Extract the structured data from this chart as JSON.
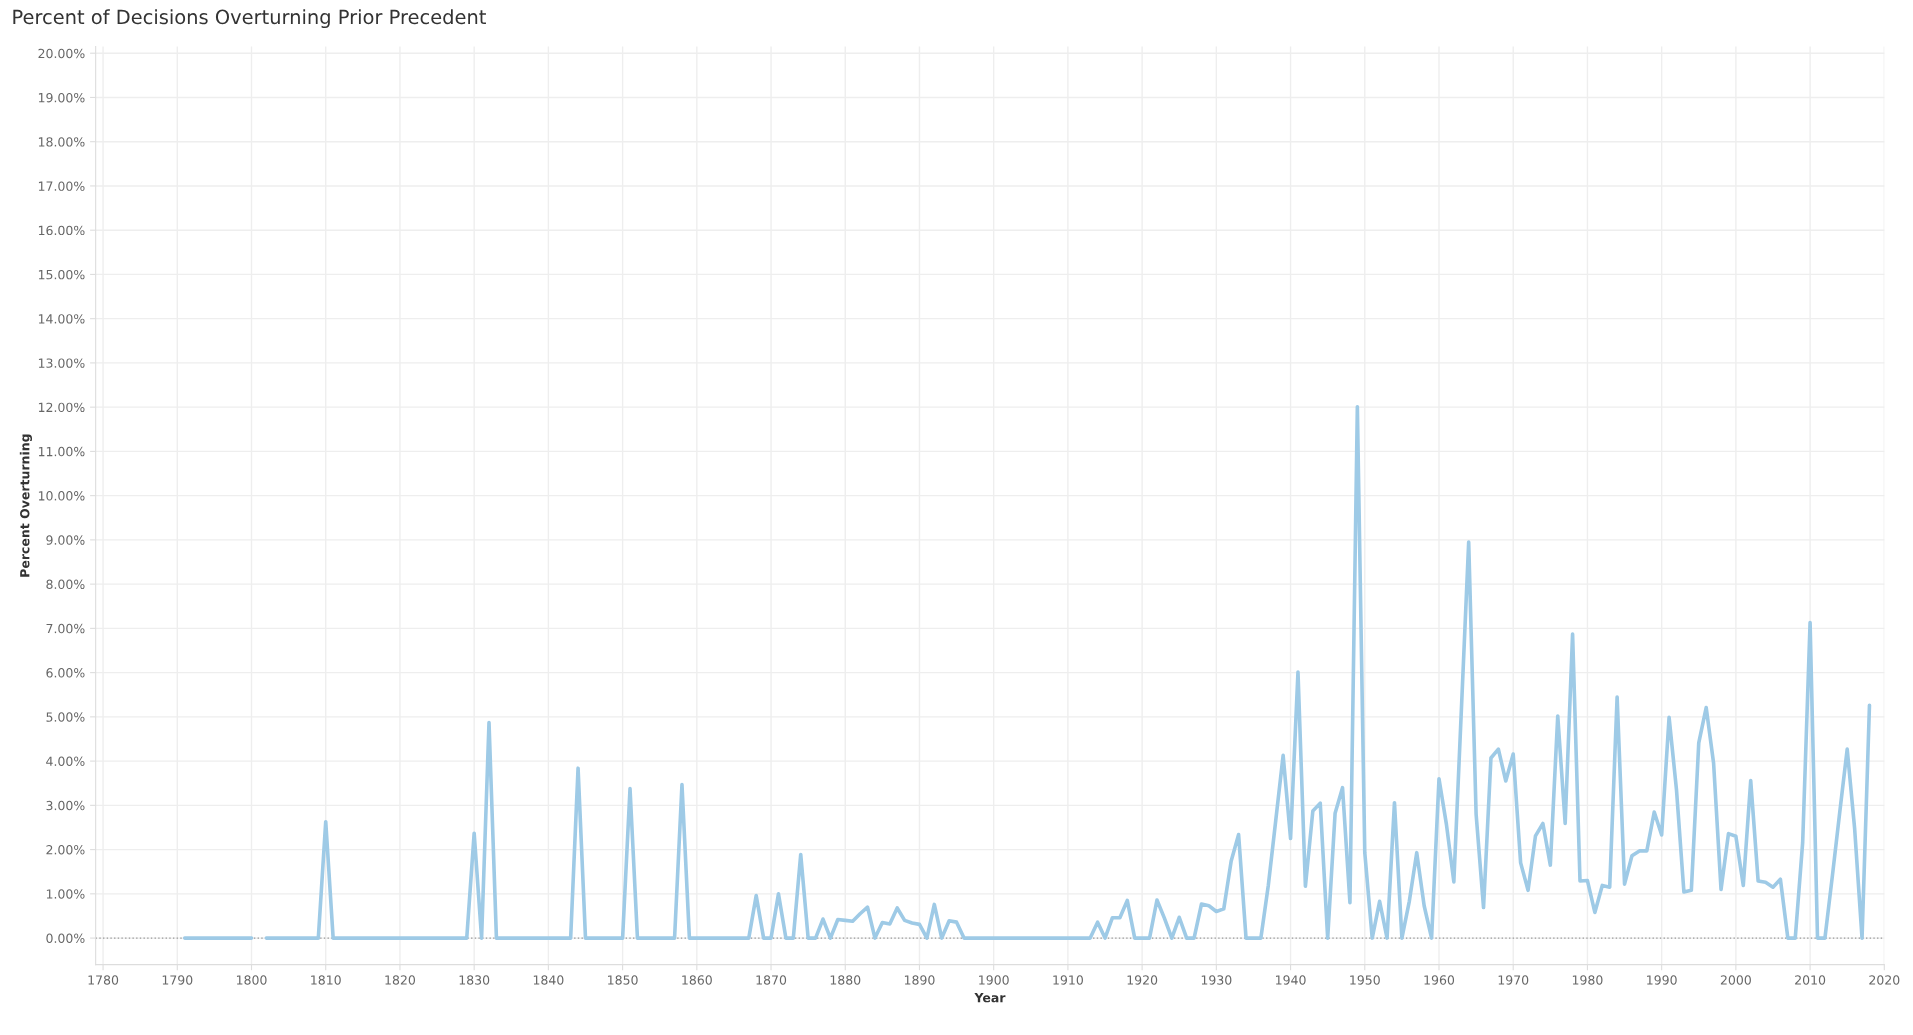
{
  "chart_data": {
    "type": "line",
    "title": "Percent of Decisions Overturning Prior Precedent",
    "xlabel": "Year",
    "ylabel": "Percent Overturning",
    "x": [
      1791,
      1792,
      1793,
      1794,
      1795,
      1796,
      1797,
      1798,
      1799,
      1800,
      1801,
      1802,
      1803,
      1804,
      1805,
      1806,
      1807,
      1808,
      1809,
      1810,
      1811,
      1812,
      1813,
      1814,
      1815,
      1816,
      1817,
      1818,
      1819,
      1820,
      1821,
      1822,
      1823,
      1824,
      1825,
      1826,
      1827,
      1828,
      1829,
      1830,
      1831,
      1832,
      1833,
      1834,
      1835,
      1836,
      1837,
      1838,
      1839,
      1840,
      1841,
      1842,
      1843,
      1844,
      1845,
      1846,
      1847,
      1848,
      1849,
      1850,
      1851,
      1852,
      1853,
      1854,
      1855,
      1856,
      1857,
      1858,
      1859,
      1860,
      1861,
      1862,
      1863,
      1864,
      1865,
      1866,
      1867,
      1868,
      1869,
      1870,
      1871,
      1872,
      1873,
      1874,
      1875,
      1876,
      1877,
      1878,
      1879,
      1880,
      1881,
      1882,
      1883,
      1884,
      1885,
      1886,
      1887,
      1888,
      1889,
      1890,
      1891,
      1892,
      1893,
      1894,
      1895,
      1896,
      1897,
      1898,
      1899,
      1900,
      1901,
      1902,
      1903,
      1904,
      1905,
      1906,
      1907,
      1908,
      1909,
      1910,
      1911,
      1912,
      1913,
      1914,
      1915,
      1916,
      1917,
      1918,
      1919,
      1920,
      1921,
      1922,
      1923,
      1924,
      1925,
      1926,
      1927,
      1928,
      1929,
      1930,
      1931,
      1932,
      1933,
      1934,
      1935,
      1936,
      1937,
      1938,
      1939,
      1940,
      1941,
      1942,
      1943,
      1944,
      1945,
      1946,
      1947,
      1948,
      1949,
      1950,
      1951,
      1952,
      1953,
      1954,
      1955,
      1956,
      1957,
      1958,
      1959,
      1960,
      1961,
      1962,
      1963,
      1964,
      1965,
      1966,
      1967,
      1968,
      1969,
      1970,
      1971,
      1972,
      1973,
      1974,
      1975,
      1976,
      1977,
      1978,
      1979,
      1980,
      1981,
      1982,
      1983,
      1984,
      1985,
      1986,
      1987,
      1988,
      1989,
      1990,
      1991,
      1992,
      1993,
      1994,
      1995,
      1996,
      1997,
      1998,
      1999,
      2000,
      2001,
      2002,
      2003,
      2004,
      2005,
      2006,
      2007,
      2008,
      2009,
      2010,
      2011,
      2012,
      2013,
      2014,
      2015,
      2016,
      2017,
      2018
    ],
    "series": [
      {
        "color": "#9ecae6",
        "values": [
          0,
          0,
          0,
          0,
          0,
          0,
          0,
          0,
          0,
          0,
          null,
          0,
          0,
          0,
          0,
          0,
          0,
          0,
          0,
          2.63,
          0,
          0,
          0,
          0,
          0,
          0,
          0,
          0,
          0,
          0,
          0,
          0,
          0,
          0,
          0,
          0,
          0,
          0,
          0,
          2.37,
          0,
          4.87,
          0,
          0,
          0,
          0,
          0,
          0,
          0,
          0,
          0,
          0,
          0,
          3.84,
          0,
          0,
          0,
          0,
          0,
          0,
          3.38,
          0,
          0,
          0,
          0,
          0,
          0,
          3.47,
          0,
          0,
          0,
          0,
          0,
          0,
          0,
          0,
          0,
          0.96,
          0,
          0,
          1.0,
          0,
          0,
          1.89,
          0,
          0,
          0.43,
          0,
          0.42,
          0.4,
          0.38,
          0.55,
          0.7,
          0,
          0.35,
          0.32,
          0.68,
          0.4,
          0.34,
          0.31,
          0,
          0.76,
          0,
          0.39,
          0.36,
          0,
          0,
          0,
          0,
          0,
          0,
          0,
          0,
          0,
          0,
          0,
          0,
          0,
          0,
          0,
          0,
          0,
          0,
          0.36,
          0,
          0.46,
          0.46,
          0.85,
          0,
          0,
          0,
          0.86,
          0.45,
          0,
          0.47,
          0,
          0,
          0.77,
          0.73,
          0.6,
          0.66,
          1.74,
          2.34,
          0,
          0,
          0,
          1.19,
          2.65,
          4.13,
          2.25,
          6.01,
          1.17,
          2.87,
          3.05,
          0,
          2.82,
          3.4,
          0.8,
          12.01,
          1.93,
          0,
          0.83,
          0,
          3.06,
          0,
          0.83,
          1.93,
          0.73,
          0,
          3.6,
          2.57,
          1.27,
          5.1,
          8.95,
          2.8,
          0.69,
          4.07,
          4.27,
          3.55,
          4.16,
          1.7,
          1.08,
          2.31,
          2.59,
          1.65,
          5.02,
          2.59,
          6.87,
          1.29,
          1.3,
          0.58,
          1.19,
          1.15,
          5.45,
          1.22,
          1.86,
          1.97,
          1.97,
          2.85,
          2.33,
          4.99,
          3.35,
          1.04,
          1.08,
          4.41,
          5.21,
          3.95,
          1.1,
          2.36,
          2.3,
          1.19,
          3.56,
          1.29,
          1.26,
          1.15,
          1.33,
          0,
          0,
          2.16,
          7.13,
          0,
          0,
          1.4,
          2.85,
          4.27,
          2.48,
          0,
          5.26
        ]
      }
    ],
    "xlim": [
      1779,
      2020
    ],
    "xticks": [
      1780,
      1790,
      1800,
      1810,
      1820,
      1830,
      1840,
      1850,
      1860,
      1870,
      1880,
      1890,
      1900,
      1910,
      1920,
      1930,
      1940,
      1950,
      1960,
      1970,
      1980,
      1990,
      2000,
      2010,
      2020
    ],
    "ylim": [
      -0.6,
      20.15
    ],
    "yticks": [
      {
        "value": 0,
        "label": "0.00%"
      },
      {
        "value": 1,
        "label": "1.00%"
      },
      {
        "value": 2,
        "label": "2.00%"
      },
      {
        "value": 3,
        "label": "3.00%"
      },
      {
        "value": 4,
        "label": "4.00%"
      },
      {
        "value": 5,
        "label": "5.00%"
      },
      {
        "value": 6,
        "label": "6.00%"
      },
      {
        "value": 7,
        "label": "7.00%"
      },
      {
        "value": 8,
        "label": "8.00%"
      },
      {
        "value": 9,
        "label": "9.00%"
      },
      {
        "value": 10,
        "label": "10.00%"
      },
      {
        "value": 11,
        "label": "11.00%"
      },
      {
        "value": 12,
        "label": "12.00%"
      },
      {
        "value": 13,
        "label": "13.00%"
      },
      {
        "value": 14,
        "label": "14.00%"
      },
      {
        "value": 15,
        "label": "15.00%"
      },
      {
        "value": 16,
        "label": "16.00%"
      },
      {
        "value": 17,
        "label": "17.00%"
      },
      {
        "value": 18,
        "label": "18.00%"
      },
      {
        "value": 19,
        "label": "19.00%"
      },
      {
        "value": 20,
        "label": "20.00%"
      }
    ],
    "ref_lines": [
      {
        "axis": "y",
        "value": 0,
        "color": "#999999",
        "line_style": "dotted"
      }
    ],
    "grid": true,
    "marker": "none",
    "line_style": "solid"
  }
}
